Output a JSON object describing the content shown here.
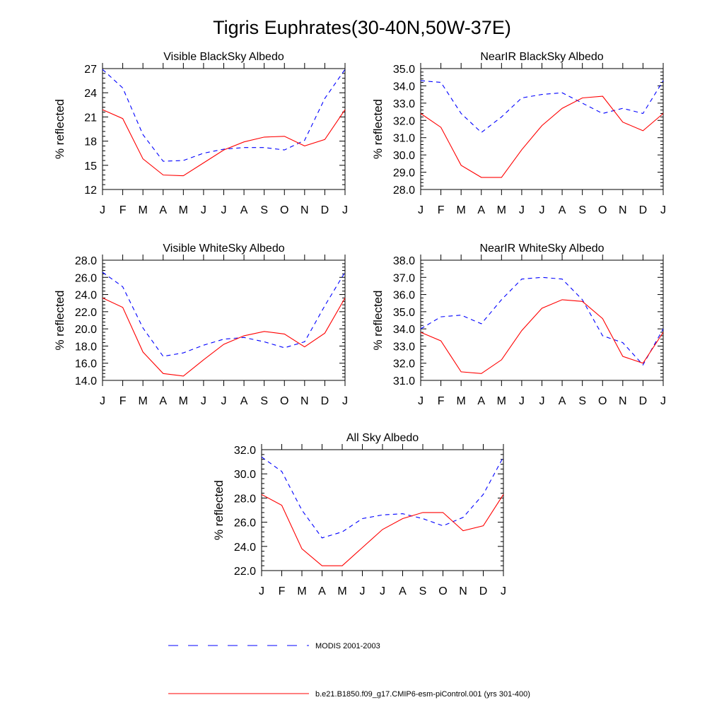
{
  "figure": {
    "title": "Tigris Euphrates(30-40N,50W-37E)"
  },
  "legend": [
    {
      "label": "MODIS 2001-2003",
      "color": "#0000ff",
      "dash": true
    },
    {
      "label": "b.e21.B1850.f09_g17.CMIP6-esm-piControl.001 (yrs 301-400)",
      "color": "#ff0000",
      "dash": false
    }
  ],
  "chart_data": [
    {
      "type": "line",
      "title": "Visible BlackSky Albedo",
      "ylabel": "% reflected",
      "categories": [
        "J",
        "F",
        "M",
        "A",
        "M",
        "J",
        "J",
        "A",
        "S",
        "O",
        "N",
        "D",
        "J"
      ],
      "ylim": [
        12,
        27
      ],
      "yticks": [
        "12",
        "15",
        "18",
        "21",
        "24",
        "27"
      ],
      "series": [
        {
          "name": "MODIS 2001-2003",
          "color": "#0000ff",
          "values": [
            26.9,
            24.6,
            18.8,
            15.5,
            15.6,
            16.5,
            17.0,
            17.2,
            17.2,
            16.9,
            18.1,
            23.3,
            26.9
          ]
        },
        {
          "name": "b.e21.B1850.f09_g17.CMIP6-esm-piControl.001 (yrs 301-400)",
          "color": "#ff0000",
          "values": [
            21.9,
            20.8,
            15.8,
            13.8,
            13.7,
            15.3,
            16.9,
            17.9,
            18.5,
            18.6,
            17.4,
            18.2,
            21.9
          ]
        }
      ]
    },
    {
      "type": "line",
      "title": "NearIR BlackSky Albedo",
      "ylabel": "% reflected",
      "categories": [
        "J",
        "F",
        "M",
        "A",
        "M",
        "J",
        "J",
        "A",
        "S",
        "O",
        "N",
        "D",
        "J"
      ],
      "ylim": [
        28.0,
        35.0
      ],
      "yticks": [
        "28.0",
        "29.0",
        "30.0",
        "31.0",
        "32.0",
        "33.0",
        "34.0",
        "35.0"
      ],
      "series": [
        {
          "name": "MODIS 2001-2003",
          "color": "#0000ff",
          "values": [
            34.3,
            34.2,
            32.4,
            31.3,
            32.2,
            33.3,
            33.5,
            33.6,
            33.0,
            32.4,
            32.7,
            32.4,
            34.3
          ]
        },
        {
          "name": "b.e21.B1850.f09_g17.CMIP6-esm-piControl.001 (yrs 301-400)",
          "color": "#ff0000",
          "values": [
            32.4,
            31.6,
            29.4,
            28.7,
            28.7,
            30.3,
            31.7,
            32.7,
            33.3,
            33.4,
            31.9,
            31.4,
            32.4
          ]
        }
      ]
    },
    {
      "type": "line",
      "title": "Visible WhiteSky Albedo",
      "ylabel": "% reflected",
      "categories": [
        "J",
        "F",
        "M",
        "A",
        "M",
        "J",
        "J",
        "A",
        "S",
        "O",
        "N",
        "D",
        "J"
      ],
      "ylim": [
        14.0,
        28.0
      ],
      "yticks": [
        "14.0",
        "16.0",
        "18.0",
        "20.0",
        "22.0",
        "24.0",
        "26.0",
        "28.0"
      ],
      "series": [
        {
          "name": "MODIS 2001-2003",
          "color": "#0000ff",
          "values": [
            26.6,
            24.9,
            20.1,
            16.8,
            17.2,
            18.1,
            18.8,
            19.0,
            18.5,
            17.8,
            18.5,
            22.7,
            26.6
          ]
        },
        {
          "name": "b.e21.B1850.f09_g17.CMIP6-esm-piControl.001 (yrs 301-400)",
          "color": "#ff0000",
          "values": [
            23.6,
            22.5,
            17.3,
            14.8,
            14.5,
            16.4,
            18.2,
            19.2,
            19.7,
            19.4,
            17.9,
            19.5,
            23.6
          ]
        }
      ]
    },
    {
      "type": "line",
      "title": "NearIR WhiteSky Albedo",
      "ylabel": "% reflected",
      "categories": [
        "J",
        "F",
        "M",
        "A",
        "M",
        "J",
        "J",
        "A",
        "S",
        "O",
        "N",
        "D",
        "J"
      ],
      "ylim": [
        31.0,
        38.0
      ],
      "yticks": [
        "31.0",
        "32.0",
        "33.0",
        "34.0",
        "35.0",
        "36.0",
        "37.0",
        "38.0"
      ],
      "series": [
        {
          "name": "MODIS 2001-2003",
          "color": "#0000ff",
          "values": [
            34.0,
            34.7,
            34.8,
            34.3,
            35.7,
            36.9,
            37.0,
            36.9,
            35.7,
            33.6,
            33.2,
            31.9,
            34.0
          ]
        },
        {
          "name": "b.e21.B1850.f09_g17.CMIP6-esm-piControl.001 (yrs 301-400)",
          "color": "#ff0000",
          "values": [
            33.8,
            33.3,
            31.5,
            31.4,
            32.2,
            33.9,
            35.2,
            35.7,
            35.6,
            34.6,
            32.4,
            32.0,
            33.8
          ]
        }
      ]
    },
    {
      "type": "line",
      "title": "All Sky Albedo",
      "ylabel": "% reflected",
      "categories": [
        "J",
        "F",
        "M",
        "A",
        "M",
        "J",
        "J",
        "A",
        "S",
        "O",
        "N",
        "D",
        "J"
      ],
      "ylim": [
        22.0,
        32.0
      ],
      "yticks": [
        "22.0",
        "24.0",
        "26.0",
        "28.0",
        "30.0",
        "32.0"
      ],
      "series": [
        {
          "name": "MODIS 2001-2003",
          "color": "#0000ff",
          "values": [
            31.4,
            30.2,
            27.0,
            24.7,
            25.2,
            26.3,
            26.6,
            26.7,
            26.3,
            25.7,
            26.4,
            28.3,
            31.4
          ]
        },
        {
          "name": "b.e21.B1850.f09_g17.CMIP6-esm-piControl.001 (yrs 301-400)",
          "color": "#ff0000",
          "values": [
            28.3,
            27.4,
            23.8,
            22.4,
            22.4,
            23.9,
            25.4,
            26.3,
            26.8,
            26.8,
            25.3,
            25.7,
            28.3
          ]
        }
      ]
    }
  ]
}
